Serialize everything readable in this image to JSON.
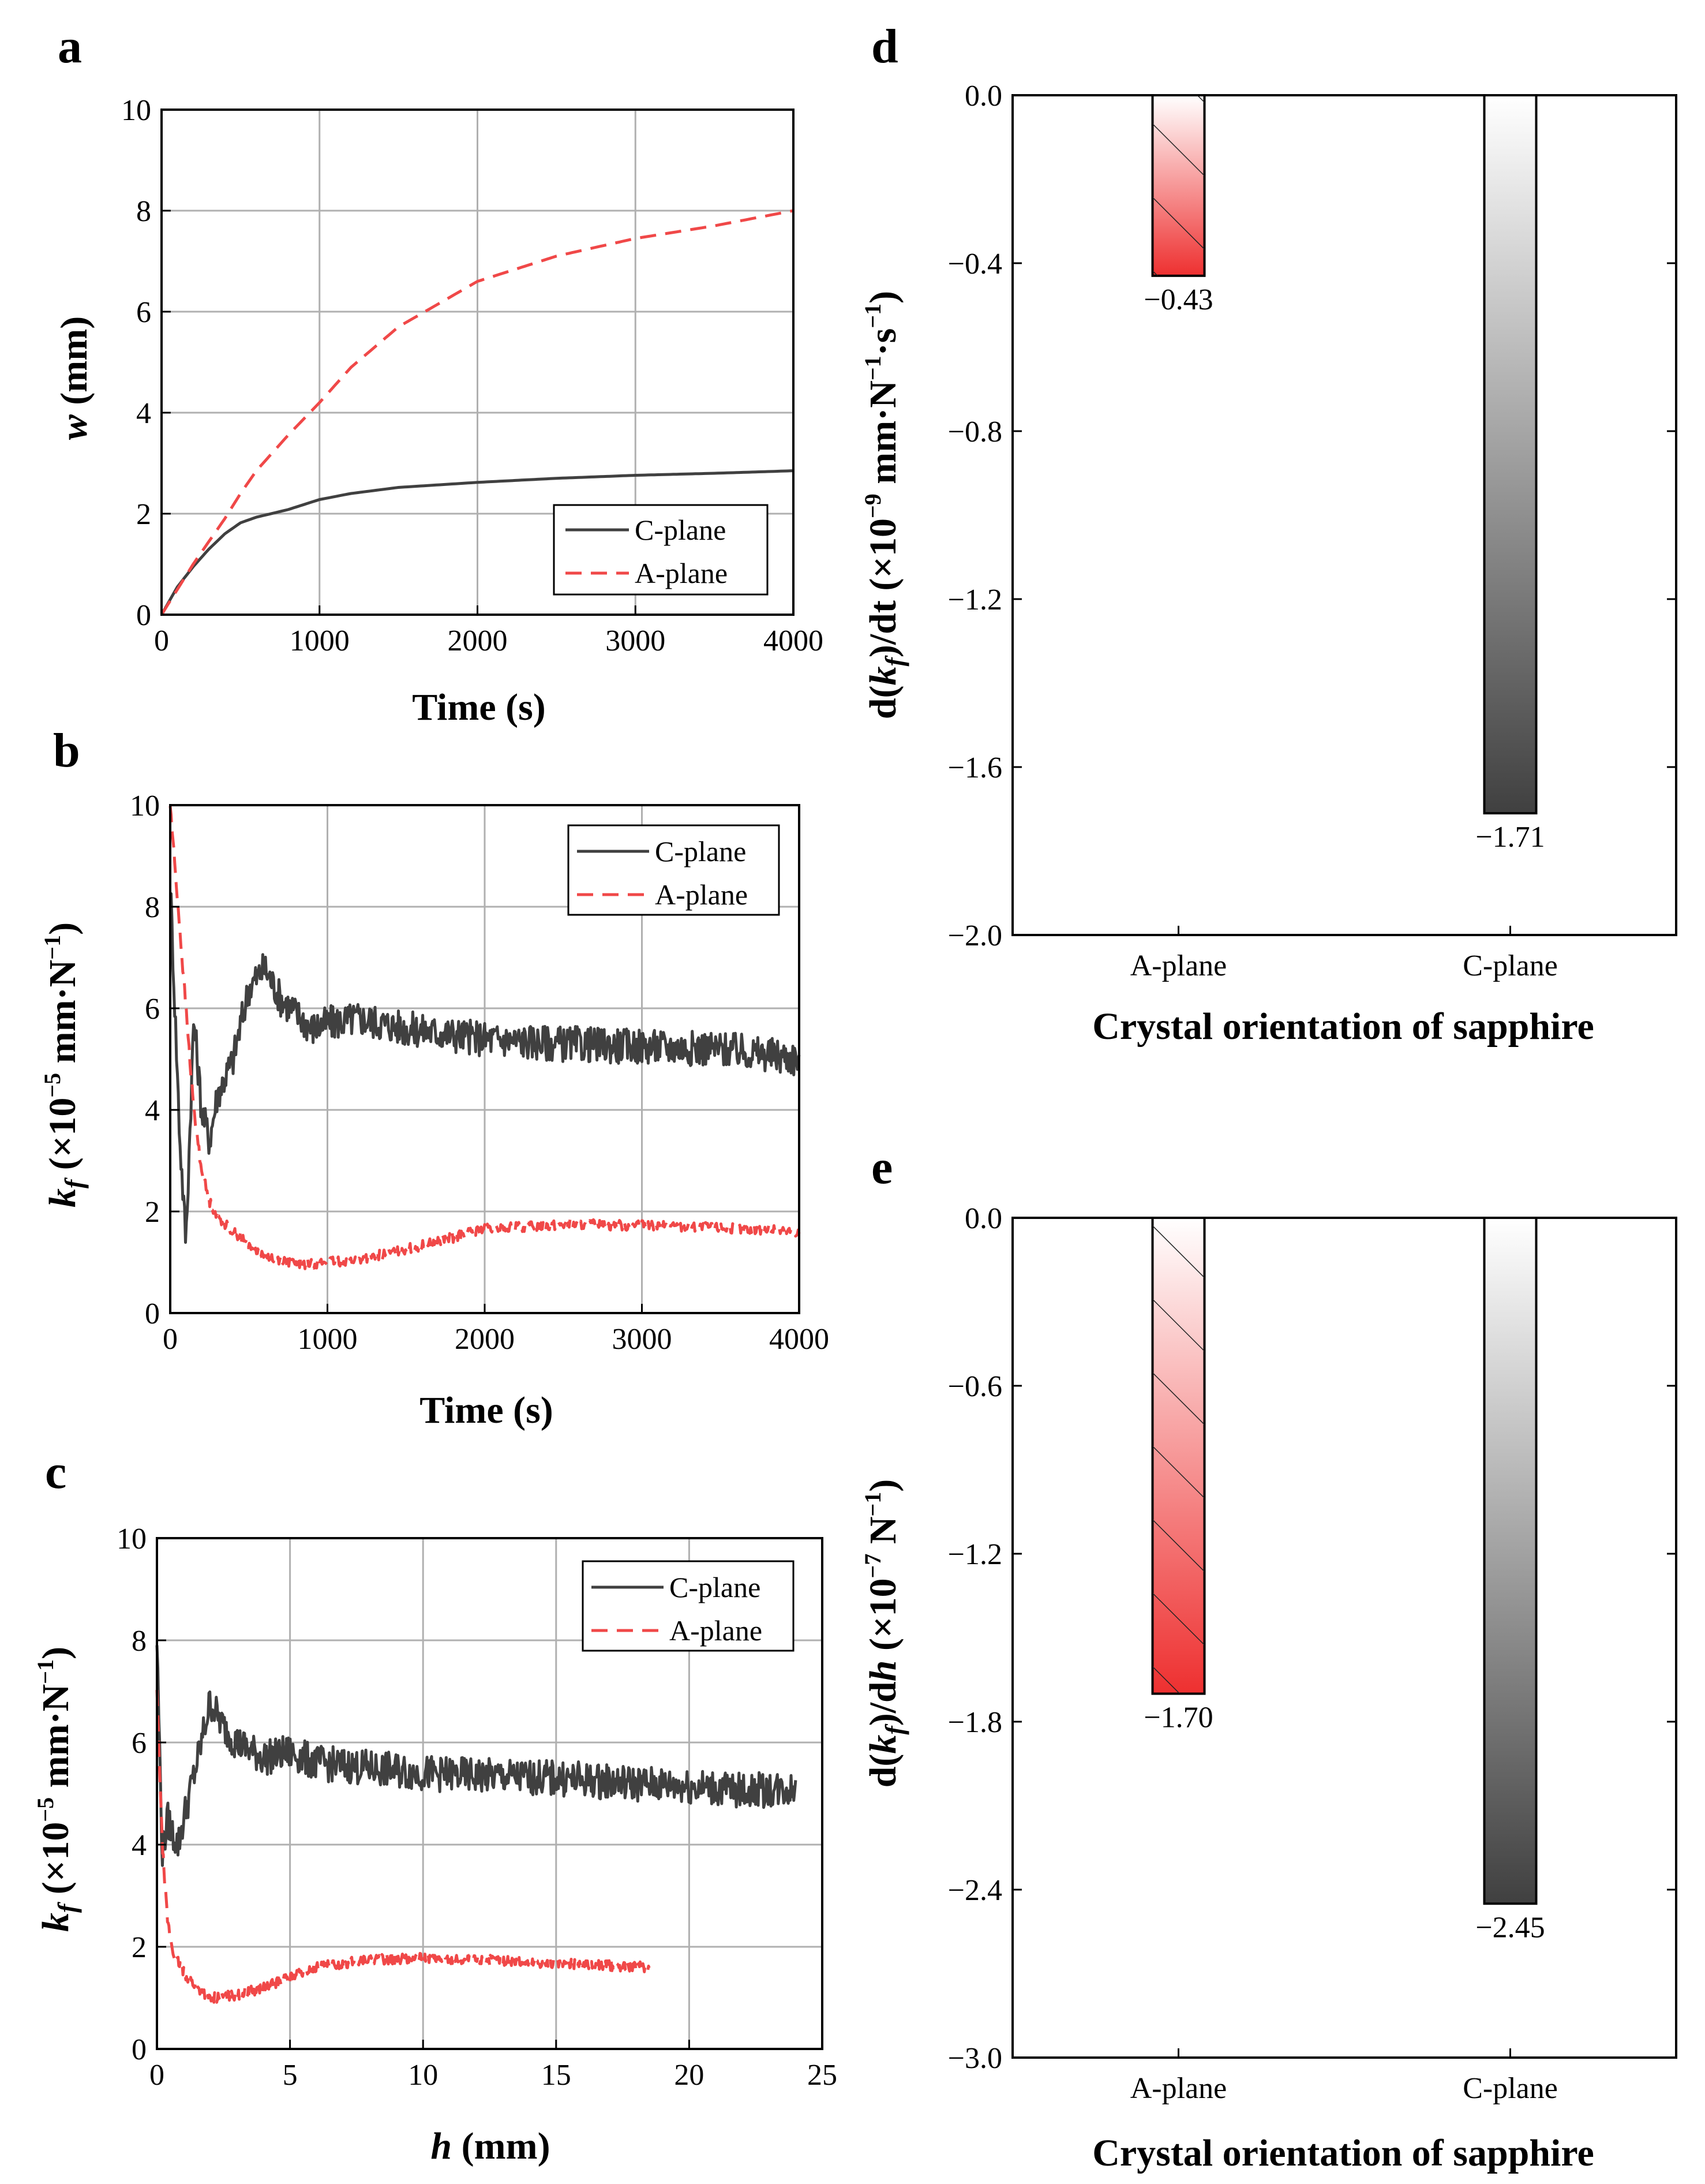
{
  "chart_data": [
    {
      "panel": "a",
      "type": "line",
      "xlabel": "Time (s)",
      "ylabel_var": "w",
      "ylabel_rest": " (mm)",
      "xlim": [
        0,
        4000
      ],
      "ylim": [
        0,
        10
      ],
      "xticks": [
        0,
        1000,
        2000,
        3000,
        4000
      ],
      "yticks": [
        0,
        2,
        4,
        6,
        8,
        10
      ],
      "grid": true,
      "legend_position": "bottom-right",
      "series": [
        {
          "name": "C-plane",
          "color": "#404040",
          "style": "solid",
          "x": [
            0,
            100,
            200,
            300,
            400,
            500,
            600,
            800,
            1000,
            1200,
            1500,
            2000,
            2500,
            3000,
            3500,
            4000
          ],
          "y": [
            0,
            0.55,
            0.95,
            1.3,
            1.6,
            1.82,
            1.93,
            2.08,
            2.28,
            2.4,
            2.52,
            2.62,
            2.7,
            2.76,
            2.8,
            2.85
          ]
        },
        {
          "name": "A-plane",
          "color": "#f04848",
          "style": "dashed",
          "x": [
            0,
            100,
            200,
            300,
            400,
            500,
            600,
            800,
            1000,
            1200,
            1500,
            2000,
            2500,
            3000,
            3500,
            4000
          ],
          "y": [
            0,
            0.5,
            1.0,
            1.45,
            1.9,
            2.4,
            2.85,
            3.55,
            4.2,
            4.9,
            5.7,
            6.6,
            7.1,
            7.45,
            7.7,
            8.0
          ]
        }
      ]
    },
    {
      "panel": "b",
      "type": "line",
      "xlabel": "Time (s)",
      "ylabel_var": "k",
      "ylabel_sub": "f",
      "ylabel_rest": " (×10",
      "ylabel_exp": "−5",
      "ylabel_tail": " mm·N",
      "ylabel_exp2": "−1",
      "ylabel_close": ")",
      "xlim": [
        0,
        4000
      ],
      "ylim": [
        0,
        10
      ],
      "xticks": [
        0,
        1000,
        2000,
        3000,
        4000
      ],
      "yticks": [
        0,
        2,
        4,
        6,
        8,
        10
      ],
      "grid": true,
      "legend_position": "top-right",
      "series": [
        {
          "name": "C-plane",
          "color": "#404040",
          "style": "solid",
          "x": [
            0,
            60,
            100,
            150,
            200,
            250,
            300,
            400,
            500,
            600,
            700,
            800,
            900,
            1000,
            1200,
            1500,
            2000,
            2500,
            3000,
            3500,
            4000
          ],
          "y": [
            8.5,
            3.5,
            1.4,
            5.8,
            4.0,
            3.4,
            4.3,
            5.0,
            6.4,
            6.8,
            6.2,
            5.9,
            5.6,
            5.7,
            5.8,
            5.6,
            5.4,
            5.3,
            5.25,
            5.2,
            5.0
          ],
          "noise": 0.35
        },
        {
          "name": "A-plane",
          "color": "#f04848",
          "style": "dashed",
          "x": [
            0,
            50,
            100,
            150,
            200,
            250,
            300,
            400,
            500,
            600,
            800,
            1000,
            1200,
            1500,
            2000,
            2500,
            3000,
            3500,
            4000
          ],
          "y": [
            10,
            8.0,
            6.0,
            4.0,
            2.8,
            2.2,
            1.9,
            1.6,
            1.35,
            1.15,
            0.95,
            1.0,
            1.05,
            1.25,
            1.65,
            1.75,
            1.72,
            1.68,
            1.6
          ],
          "noise": 0.1
        }
      ]
    },
    {
      "panel": "c",
      "type": "line",
      "xlabel_var": "h",
      "xlabel_rest": " (mm)",
      "ylabel_var": "k",
      "ylabel_sub": "f",
      "ylabel_rest": " (×10",
      "ylabel_exp": "−5",
      "ylabel_tail": " mm·N",
      "ylabel_exp2": "−1",
      "ylabel_close": ")",
      "xlim": [
        0,
        25
      ],
      "ylim": [
        0,
        10
      ],
      "xticks": [
        0,
        5,
        10,
        15,
        20,
        25
      ],
      "yticks": [
        0,
        2,
        4,
        6,
        8,
        10
      ],
      "grid": true,
      "legend_position": "top-right",
      "series": [
        {
          "name": "C-plane",
          "color": "#404040",
          "style": "solid",
          "x": [
            0,
            0.2,
            0.4,
            0.6,
            0.8,
            1.0,
            1.5,
            2.0,
            2.5,
            3.0,
            4.0,
            5.0,
            6.0,
            8.0,
            10.0,
            12.0,
            15.0,
            18.0,
            20.0,
            22.0,
            24.0
          ],
          "y": [
            8.0,
            3.8,
            4.5,
            4.2,
            4.0,
            4.5,
            5.6,
            6.8,
            6.3,
            6.0,
            5.7,
            5.8,
            5.6,
            5.5,
            5.4,
            5.35,
            5.3,
            5.2,
            5.15,
            5.05,
            5.1
          ],
          "noise": 0.35
        },
        {
          "name": "A-plane",
          "color": "#f04848",
          "style": "dashed",
          "x": [
            0,
            0.2,
            0.4,
            0.6,
            1.0,
            1.5,
            2.0,
            3.0,
            4.0,
            5.0,
            6.0,
            8.0,
            10.0,
            12.0,
            14.0,
            16.0,
            18.5
          ],
          "y": [
            7.0,
            4.0,
            2.5,
            1.9,
            1.5,
            1.2,
            1.0,
            1.05,
            1.2,
            1.4,
            1.6,
            1.75,
            1.78,
            1.75,
            1.7,
            1.65,
            1.6
          ],
          "noise": 0.1
        }
      ]
    },
    {
      "panel": "d",
      "type": "bar",
      "xlabel": "Crystal orientation of sapphire",
      "ylabel_rest": "d(",
      "ylabel_var": "k",
      "ylabel_sub": "f",
      "ylabel_mid": ")/dt (×10",
      "ylabel_exp": "−9",
      "ylabel_tail": " mm·N",
      "ylabel_exp2": "−1",
      "ylabel_tail2": "·s",
      "ylabel_exp3": "−1",
      "ylabel_close": ")",
      "categories": [
        "A-plane",
        "C-plane"
      ],
      "values": [
        -0.43,
        -1.71
      ],
      "value_labels": [
        "−0.43",
        "−1.71"
      ],
      "ylim": [
        -2.0,
        0.0
      ],
      "yticks": [
        0.0,
        -0.4,
        -0.8,
        -1.2,
        -1.6,
        -2.0
      ],
      "ytick_labels": [
        "0.0",
        "−0.4",
        "−0.8",
        "−1.2",
        "−1.6",
        "−2.0"
      ],
      "grid": false
    },
    {
      "panel": "e",
      "type": "bar",
      "xlabel": "Crystal orientation of sapphire",
      "ylabel_rest": "d(",
      "ylabel_var": "k",
      "ylabel_sub": "f",
      "ylabel_mid": ")/d",
      "ylabel_var2": "h",
      "ylabel_mid2": " (×10",
      "ylabel_exp": "−7",
      "ylabel_tail": " N",
      "ylabel_exp2": "−1",
      "ylabel_close": ")",
      "categories": [
        "A-plane",
        "C-plane"
      ],
      "values": [
        -1.7,
        -2.45
      ],
      "value_labels": [
        "−1.70",
        "−2.45"
      ],
      "ylim": [
        -3.0,
        0.0
      ],
      "yticks": [
        0.0,
        -0.6,
        -1.2,
        -1.8,
        -2.4,
        -3.0
      ],
      "ytick_labels": [
        "0.0",
        "−0.6",
        "−1.2",
        "−1.8",
        "−2.4",
        "−3.0"
      ],
      "grid": false
    }
  ]
}
